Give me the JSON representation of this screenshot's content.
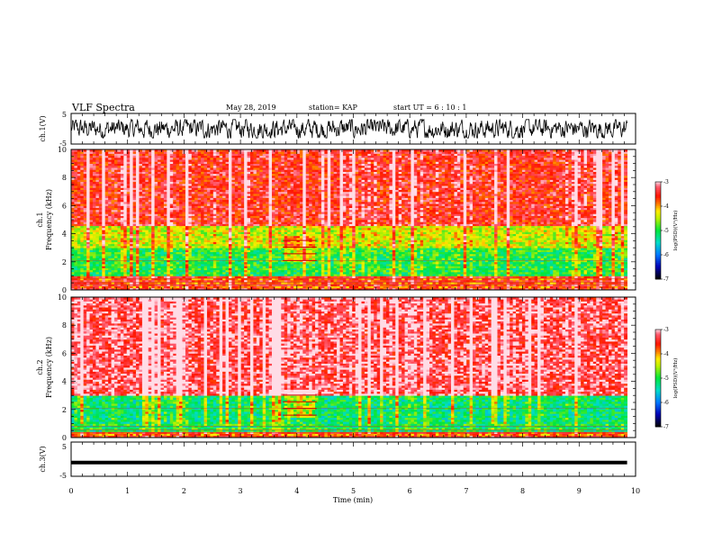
{
  "header": {
    "title": "VLF Spectra",
    "date": "May 28, 2019",
    "station": "station= KAP",
    "start": "start  UT =  6 : 10 : 1"
  },
  "chart_data": [
    {
      "type": "line",
      "panel": "ch1-waveform",
      "ylabel": "ch.1(V)",
      "ylim": [
        -5,
        5
      ],
      "yticks": [
        "5",
        "-5"
      ],
      "xlim": [
        0,
        10
      ],
      "data_end_min": 9.85,
      "trace_color": "#000000",
      "trace_range_approx": [
        -3,
        3
      ]
    },
    {
      "type": "heatmap",
      "panel": "ch1-spectrogram",
      "ylabel": "ch.1\nFrequency (kHz)",
      "ylim": [
        0,
        10
      ],
      "yticks": [
        "0",
        "2",
        "4",
        "6",
        "8",
        "10"
      ],
      "xlim": [
        0,
        10
      ],
      "data_end_min": 9.85,
      "bands": [
        {
          "from_khz": 0,
          "to_khz": 1.0,
          "level": -3.8
        },
        {
          "from_khz": 1.0,
          "to_khz": 3.0,
          "level": -5.0
        },
        {
          "from_khz": 3.0,
          "to_khz": 4.6,
          "level": -4.4
        },
        {
          "from_khz": 4.6,
          "to_khz": 10,
          "level": -3.5
        }
      ],
      "features": [
        {
          "kind": "box",
          "t0": 3.75,
          "t1": 4.35,
          "f0": 2.0,
          "f1": 3.9
        }
      ],
      "colorbar": {
        "label": "log(PSD)(V²/Hz)",
        "range": [
          -7,
          -3
        ],
        "ticks": [
          "-3",
          "-4",
          "-5",
          "-6",
          "-7"
        ]
      }
    },
    {
      "type": "heatmap",
      "panel": "ch2-spectrogram",
      "ylabel": "ch.2\nFrequency (kHz)",
      "ylim": [
        0,
        10
      ],
      "yticks": [
        "0",
        "2",
        "4",
        "6",
        "8",
        "10"
      ],
      "xlim": [
        0,
        10
      ],
      "data_end_min": 9.85,
      "bands": [
        {
          "from_khz": 0,
          "to_khz": 0.5,
          "level": -3.9
        },
        {
          "from_khz": 0.5,
          "to_khz": 3.0,
          "level": -5.2
        },
        {
          "from_khz": 3.0,
          "to_khz": 10,
          "level": -3.3
        }
      ],
      "features": [
        {
          "kind": "box",
          "t0": 3.75,
          "t1": 4.35,
          "f0": 1.5,
          "f1": 3.4
        }
      ],
      "colorbar": {
        "label": "log(PSD)(V²/Hz)",
        "range": [
          -7,
          -3
        ],
        "ticks": [
          "-3",
          "-4",
          "-5",
          "-6",
          "-7"
        ]
      }
    },
    {
      "type": "line",
      "panel": "ch3-waveform",
      "ylabel": "ch.3(V)",
      "ylim": [
        -5,
        5
      ],
      "yticks": [
        "5",
        "-5"
      ],
      "xlim": [
        0,
        10
      ],
      "data_end_min": 9.85,
      "constant_value": -1.0,
      "trace_color": "#000000"
    }
  ],
  "xaxis": {
    "label": "Time (min)",
    "ticks": [
      "0",
      "1",
      "2",
      "3",
      "4",
      "5",
      "6",
      "7",
      "8",
      "9",
      "10"
    ]
  }
}
